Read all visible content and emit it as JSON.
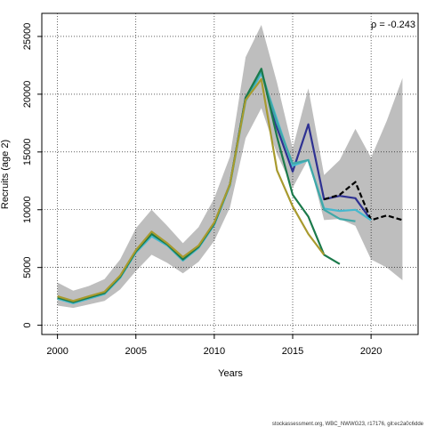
{
  "chart_data": {
    "type": "line",
    "xlabel": "Years",
    "ylabel": "Recruits (age 2)",
    "xlim": [
      1999,
      2023
    ],
    "ylim": [
      -800,
      27000
    ],
    "x_ticks": [
      2000,
      2005,
      2010,
      2015,
      2020
    ],
    "y_ticks": [
      0,
      5000,
      10000,
      15000,
      20000,
      25000
    ],
    "grid": true,
    "annotation": "ρ = -0.243",
    "footer": "stockassessment.org, WBC_NWWG23, r17176, git:ec2a0c6dde",
    "confidence_band": {
      "x": [
        2000,
        2001,
        2002,
        2003,
        2004,
        2005,
        2006,
        2007,
        2008,
        2009,
        2010,
        2011,
        2012,
        2013,
        2014,
        2015,
        2016,
        2017,
        2018,
        2019,
        2020,
        2021,
        2022
      ],
      "lower": [
        1700,
        1500,
        1800,
        2100,
        3100,
        4700,
        6100,
        5400,
        4500,
        5500,
        7300,
        10200,
        16200,
        18800,
        14800,
        11900,
        14400,
        9100,
        9200,
        8600,
        5700,
        5000,
        3900
      ],
      "upper": [
        3700,
        3000,
        3400,
        4000,
        5700,
        8400,
        10000,
        8600,
        7100,
        8500,
        11000,
        14600,
        23200,
        26000,
        21000,
        15300,
        20500,
        13000,
        14300,
        17000,
        14500,
        17700,
        21400
      ]
    },
    "series": [
      {
        "color": "#2e3192",
        "dashed": false,
        "x": [
          2000,
          2001,
          2002,
          2003,
          2004,
          2005,
          2006,
          2007,
          2008,
          2009,
          2010,
          2011,
          2012,
          2013,
          2014,
          2015,
          2016,
          2017,
          2018,
          2019,
          2020
        ],
        "values": [
          2400,
          2000,
          2400,
          2800,
          4200,
          6400,
          7900,
          7000,
          5700,
          6800,
          8800,
          12200,
          19700,
          22000,
          17100,
          13300,
          17400,
          10900,
          11200,
          11000,
          9100
        ]
      },
      {
        "color": "#000000",
        "dashed": true,
        "x": [
          2017,
          2018,
          2019,
          2020,
          2021,
          2022
        ],
        "values": [
          10900,
          11300,
          12400,
          9100,
          9500,
          9100
        ]
      },
      {
        "color": "#45b8ce",
        "dashed": false,
        "x": [
          2000,
          2001,
          2002,
          2003,
          2004,
          2005,
          2006,
          2007,
          2008,
          2009,
          2010,
          2011,
          2012,
          2013,
          2014,
          2015,
          2016,
          2017,
          2018,
          2019,
          2020
        ],
        "values": [
          2300,
          1900,
          2300,
          2700,
          4100,
          6300,
          7700,
          6900,
          5600,
          6700,
          8700,
          12100,
          19400,
          21800,
          17800,
          13800,
          14300,
          10100,
          9900,
          10000,
          9100
        ]
      },
      {
        "color": "#3fa8a8",
        "dashed": false,
        "x": [
          2000,
          2001,
          2002,
          2003,
          2004,
          2005,
          2006,
          2007,
          2008,
          2009,
          2010,
          2011,
          2012,
          2013,
          2014,
          2015,
          2016,
          2017,
          2018,
          2019
        ],
        "values": [
          2400,
          2000,
          2400,
          2800,
          4200,
          6400,
          7900,
          7000,
          5700,
          6800,
          8800,
          12200,
          19600,
          22000,
          17500,
          14000,
          14300,
          10000,
          9200,
          9000
        ]
      },
      {
        "color": "#1b7a4b",
        "dashed": false,
        "x": [
          2000,
          2001,
          2002,
          2003,
          2004,
          2005,
          2006,
          2007,
          2008,
          2009,
          2010,
          2011,
          2012,
          2013,
          2014,
          2015,
          2016,
          2017,
          2018
        ],
        "values": [
          2400,
          2000,
          2400,
          2800,
          4200,
          6400,
          7900,
          7000,
          5700,
          6800,
          8800,
          12200,
          19700,
          22200,
          16300,
          11300,
          9400,
          6100,
          5300
        ]
      },
      {
        "color": "#a89a2e",
        "dashed": false,
        "x": [
          2000,
          2001,
          2002,
          2003,
          2004,
          2005,
          2006,
          2007,
          2008,
          2009,
          2010,
          2011,
          2012,
          2013,
          2014,
          2015,
          2016,
          2017
        ],
        "values": [
          2500,
          2100,
          2500,
          2900,
          4300,
          6500,
          8100,
          7100,
          5900,
          6900,
          8900,
          12200,
          19500,
          21300,
          13400,
          10300,
          7900,
          6100
        ]
      }
    ]
  }
}
